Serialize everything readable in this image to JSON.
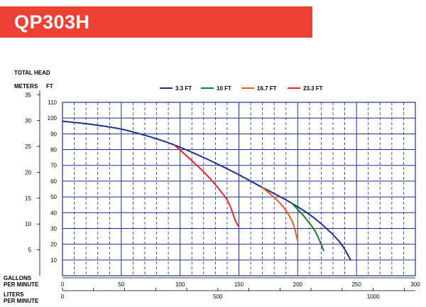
{
  "header": {
    "model": "QP303H"
  },
  "axis_labels": {
    "total_head": "TOTAL HEAD",
    "meters": "METERS",
    "ft": "FT",
    "gallons_line1": "GALLONS",
    "gallons_line2": "PER MINUTE",
    "liters_line1": "LITERS",
    "liters_line2": "PER MINUTE"
  },
  "chart_data": {
    "type": "line",
    "title": "",
    "xlabel": "GALLONS PER MINUTE",
    "x2label": "LITERS PER MINUTE",
    "ylabel": "TOTAL HEAD",
    "y_units": [
      "METERS",
      "FT"
    ],
    "xlim": [
      0,
      300
    ],
    "ylim": [
      0,
      110
    ],
    "x_ticks": [
      0,
      50,
      100,
      150,
      200,
      250,
      300
    ],
    "x_tick_labels": [
      "0",
      "50",
      "100",
      "150",
      "200",
      "250",
      "300"
    ],
    "y_ticks_ft": [
      10,
      20,
      30,
      40,
      50,
      60,
      70,
      80,
      90,
      100,
      110
    ],
    "y_tick_labels_ft": [
      "10",
      "20",
      "30",
      "40",
      "50",
      "60",
      "70",
      "80",
      "90",
      "100",
      "110"
    ],
    "y_ticks_m": [
      5,
      10,
      15,
      20,
      25,
      30,
      35
    ],
    "y_tick_labels_m": [
      "5",
      "10",
      "15",
      "20",
      "25",
      "30",
      "35"
    ],
    "x2_ticks_lpm": [
      0,
      500,
      1000
    ],
    "x2_tick_labels_lpm": [
      "0",
      "500",
      "1000"
    ],
    "grid": true,
    "legend_position": "top",
    "series": [
      {
        "name": "3.3 FT",
        "color": "#1a2f8f",
        "x": [
          0,
          25,
          50,
          75,
          95,
          120,
          145,
          170,
          195,
          215,
          235,
          245
        ],
        "y": [
          98,
          96,
          93,
          88,
          83,
          75,
          66,
          56,
          46,
          36,
          22,
          10
        ]
      },
      {
        "name": "10 FT",
        "color": "#1f7a2a",
        "x": [
          195,
          205,
          215,
          222
        ],
        "y": [
          46,
          38,
          28,
          16
        ]
      },
      {
        "name": "16.7 FT",
        "color": "#f05a1e",
        "x": [
          170,
          185,
          195,
          200
        ],
        "y": [
          56,
          46,
          35,
          22
        ]
      },
      {
        "name": "23.3 FT",
        "color": "#e6262b",
        "x": [
          95,
          110,
          125,
          140,
          147,
          150
        ],
        "y": [
          83,
          73,
          62,
          48,
          35,
          31
        ]
      }
    ]
  }
}
